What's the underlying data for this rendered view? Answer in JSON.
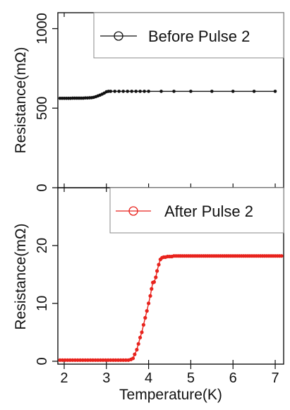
{
  "chart_data": [
    {
      "type": "scatter",
      "ylabel": "Resistance(mΩ)",
      "ylim": [
        0,
        1100
      ],
      "xlim": [
        1.85,
        7.2
      ],
      "y_ticks": [
        "0",
        "500",
        "1000"
      ],
      "legend": "top-right",
      "series": [
        {
          "name": "Before Pulse 2",
          "color": "#111111",
          "points": [
            [
              1.9,
              562
            ],
            [
              1.95,
              562
            ],
            [
              2.0,
              562
            ],
            [
              2.05,
              562
            ],
            [
              2.1,
              562
            ],
            [
              2.15,
              562
            ],
            [
              2.2,
              563
            ],
            [
              2.25,
              563
            ],
            [
              2.3,
              563
            ],
            [
              2.35,
              563
            ],
            [
              2.4,
              563
            ],
            [
              2.45,
              563
            ],
            [
              2.5,
              564
            ],
            [
              2.55,
              564
            ],
            [
              2.6,
              565
            ],
            [
              2.65,
              566
            ],
            [
              2.7,
              568
            ],
            [
              2.75,
              572
            ],
            [
              2.8,
              577
            ],
            [
              2.85,
              582
            ],
            [
              2.9,
              588
            ],
            [
              2.95,
              595
            ],
            [
              3.0,
              603
            ],
            [
              3.05,
              606
            ],
            [
              3.1,
              606
            ],
            [
              3.2,
              606
            ],
            [
              3.3,
              606
            ],
            [
              3.4,
              606
            ],
            [
              3.5,
              606
            ],
            [
              3.6,
              606
            ],
            [
              3.7,
              606
            ],
            [
              3.8,
              606
            ],
            [
              3.9,
              606
            ],
            [
              4.0,
              606
            ],
            [
              4.3,
              606
            ],
            [
              4.6,
              606
            ],
            [
              5.0,
              606
            ],
            [
              5.5,
              606
            ],
            [
              6.0,
              606
            ],
            [
              6.5,
              606
            ],
            [
              7.0,
              606
            ]
          ]
        }
      ]
    },
    {
      "type": "scatter",
      "xlabel": "Temperature(K)",
      "ylabel": "Resistance(mΩ)",
      "ylim": [
        -0.5,
        30
      ],
      "xlim": [
        1.85,
        7.2
      ],
      "y_ticks": [
        "0",
        "10",
        "20"
      ],
      "x_ticks": [
        "2",
        "3",
        "4",
        "5",
        "6",
        "7"
      ],
      "legend": "top-right",
      "series": [
        {
          "name": "After Pulse 2",
          "color": "#e8231d",
          "points": [
            [
              1.9,
              0.2
            ],
            [
              1.96,
              0.2
            ],
            [
              2.02,
              0.2
            ],
            [
              2.08,
              0.2
            ],
            [
              2.14,
              0.2
            ],
            [
              2.2,
              0.2
            ],
            [
              2.26,
              0.2
            ],
            [
              2.32,
              0.2
            ],
            [
              2.38,
              0.2
            ],
            [
              2.44,
              0.2
            ],
            [
              2.5,
              0.2
            ],
            [
              2.56,
              0.2
            ],
            [
              2.62,
              0.2
            ],
            [
              2.68,
              0.2
            ],
            [
              2.74,
              0.2
            ],
            [
              2.8,
              0.2
            ],
            [
              2.86,
              0.2
            ],
            [
              2.92,
              0.2
            ],
            [
              2.98,
              0.2
            ],
            [
              3.04,
              0.2
            ],
            [
              3.1,
              0.2
            ],
            [
              3.16,
              0.2
            ],
            [
              3.22,
              0.2
            ],
            [
              3.28,
              0.2
            ],
            [
              3.34,
              0.2
            ],
            [
              3.4,
              0.2
            ],
            [
              3.46,
              0.2
            ],
            [
              3.52,
              0.2
            ],
            [
              3.58,
              0.3
            ],
            [
              3.63,
              0.5
            ],
            [
              3.67,
              1.2
            ],
            [
              3.72,
              2.0
            ],
            [
              3.76,
              3.0
            ],
            [
              3.8,
              4.1
            ],
            [
              3.84,
              5.0
            ],
            [
              3.88,
              6.3
            ],
            [
              3.92,
              7.5
            ],
            [
              3.96,
              8.7
            ],
            [
              4.0,
              10.0
            ],
            [
              4.04,
              11.3
            ],
            [
              4.07,
              12.5
            ],
            [
              4.1,
              13.6
            ],
            [
              4.13,
              13.7
            ],
            [
              4.17,
              14.5
            ],
            [
              4.2,
              15.6
            ],
            [
              4.24,
              16.7
            ],
            [
              4.28,
              17.6
            ],
            [
              4.32,
              17.9
            ],
            [
              4.36,
              18.0
            ],
            [
              4.4,
              18.0
            ],
            [
              4.45,
              18.1
            ],
            [
              4.5,
              18.1
            ],
            [
              4.55,
              18.1
            ],
            [
              4.6,
              18.2
            ],
            [
              4.65,
              18.2
            ],
            [
              4.7,
              18.2
            ],
            [
              4.75,
              18.2
            ],
            [
              4.8,
              18.2
            ],
            [
              4.85,
              18.2
            ],
            [
              4.9,
              18.2
            ],
            [
              4.95,
              18.2
            ],
            [
              5.0,
              18.2
            ],
            [
              5.05,
              18.2
            ],
            [
              5.1,
              18.2
            ],
            [
              5.15,
              18.2
            ],
            [
              5.2,
              18.2
            ],
            [
              5.25,
              18.2
            ],
            [
              5.3,
              18.2
            ],
            [
              5.35,
              18.2
            ],
            [
              5.4,
              18.2
            ],
            [
              5.45,
              18.2
            ],
            [
              5.5,
              18.2
            ],
            [
              5.55,
              18.2
            ],
            [
              5.6,
              18.2
            ],
            [
              5.65,
              18.2
            ],
            [
              5.7,
              18.2
            ],
            [
              5.75,
              18.2
            ],
            [
              5.8,
              18.2
            ],
            [
              5.85,
              18.2
            ],
            [
              5.9,
              18.2
            ],
            [
              5.95,
              18.2
            ],
            [
              6.0,
              18.2
            ],
            [
              6.05,
              18.2
            ],
            [
              6.1,
              18.2
            ],
            [
              6.15,
              18.2
            ],
            [
              6.2,
              18.2
            ],
            [
              6.25,
              18.2
            ],
            [
              6.3,
              18.2
            ],
            [
              6.35,
              18.2
            ],
            [
              6.4,
              18.2
            ],
            [
              6.45,
              18.2
            ],
            [
              6.5,
              18.2
            ],
            [
              6.55,
              18.2
            ],
            [
              6.6,
              18.2
            ],
            [
              6.65,
              18.2
            ],
            [
              6.7,
              18.2
            ],
            [
              6.75,
              18.2
            ],
            [
              6.8,
              18.2
            ],
            [
              6.85,
              18.2
            ],
            [
              6.9,
              18.2
            ],
            [
              6.95,
              18.2
            ],
            [
              7.0,
              18.2
            ],
            [
              7.05,
              18.2
            ],
            [
              7.1,
              18.2
            ],
            [
              7.15,
              18.2
            ]
          ]
        }
      ]
    }
  ]
}
